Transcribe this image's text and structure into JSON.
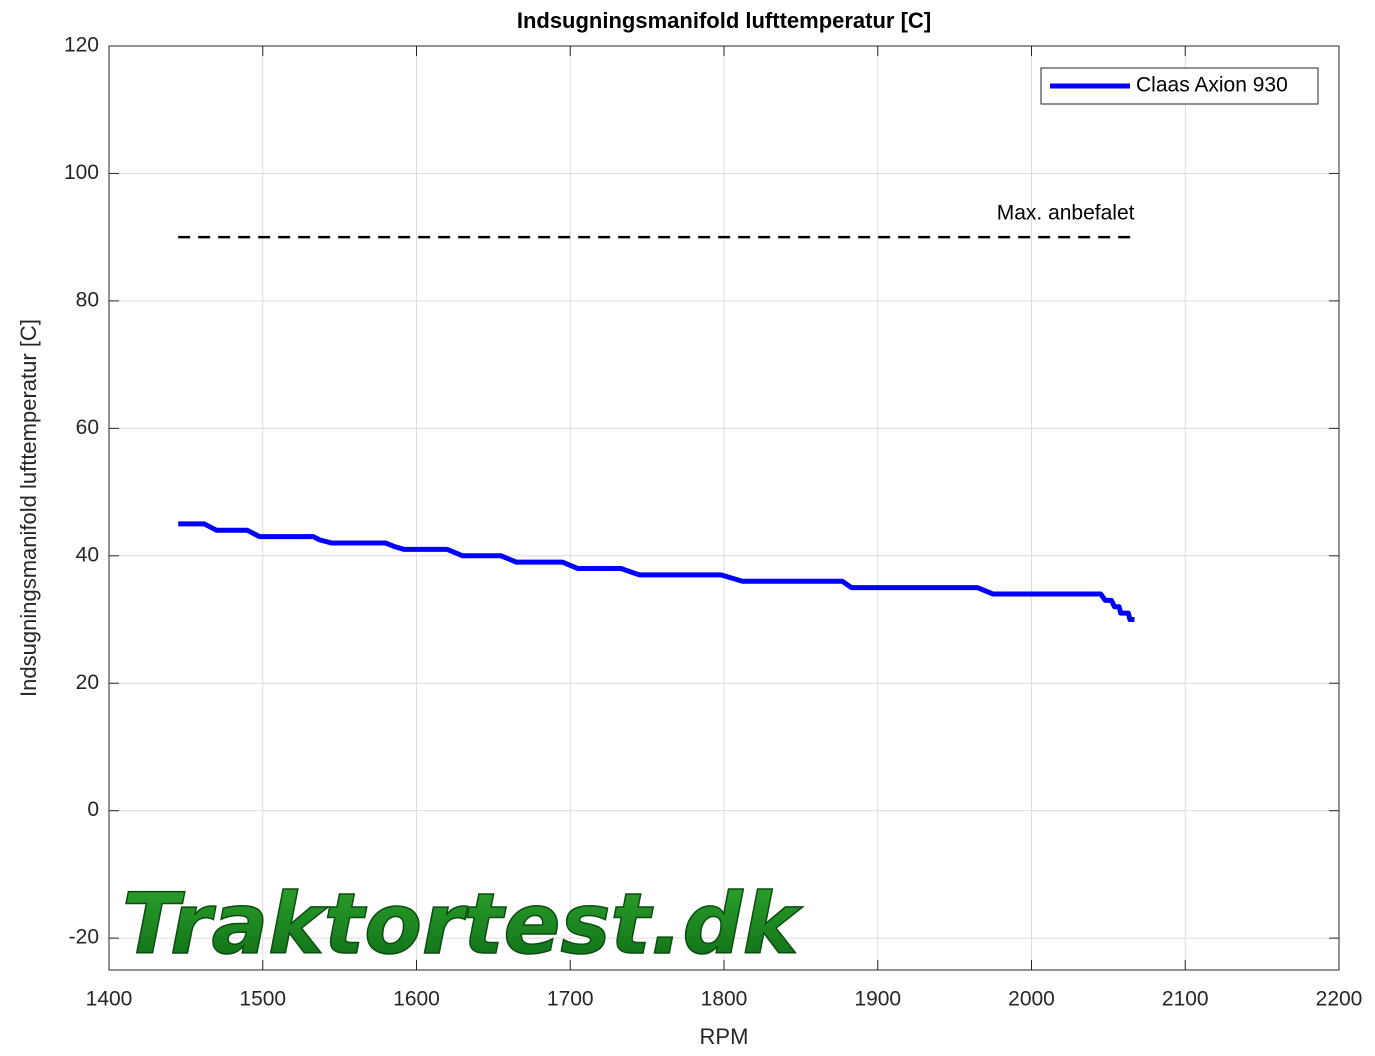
{
  "chart_data": {
    "type": "line",
    "title": "Indsugningsmanifold lufttemperatur [C]",
    "xlabel": "RPM",
    "ylabel": "Indsugningsmanifold lufttemperatur [C]",
    "x": [
      1445,
      1462,
      1470,
      1490,
      1498,
      1533,
      1537,
      1545,
      1580,
      1585,
      1592,
      1620,
      1630,
      1655,
      1665,
      1695,
      1705,
      1733,
      1745,
      1798,
      1812,
      1877,
      1883,
      1965,
      1975,
      2045,
      2048,
      2052,
      2054,
      2057,
      2058,
      2063,
      2064,
      2067
    ],
    "series": [
      {
        "name": "Claas Axion 930",
        "color": "#0000ff",
        "values": [
          45,
          45,
          44,
          44,
          43,
          43,
          42.5,
          42,
          42,
          41.5,
          41,
          41,
          40,
          40,
          39,
          39,
          38,
          38,
          37,
          37,
          36,
          36,
          35,
          35,
          34,
          34,
          33,
          33,
          32,
          32,
          31,
          31,
          30,
          30
        ]
      }
    ],
    "reference": {
      "value": 90,
      "x": [
        1445,
        2067
      ],
      "color": "#000000",
      "label": "Max. anbefalet"
    },
    "watermark": "Traktortest.dk",
    "xlim": [
      1400,
      2200
    ],
    "ylim": [
      -25,
      120
    ],
    "xticks": [
      1400,
      1500,
      1600,
      1700,
      1800,
      1900,
      2000,
      2100,
      2200
    ],
    "yticks": [
      -20,
      0,
      20,
      40,
      60,
      80,
      100,
      120
    ],
    "grid": true,
    "legend": "upper right"
  }
}
